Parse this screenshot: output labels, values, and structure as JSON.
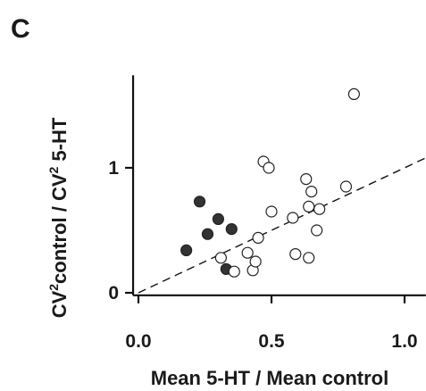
{
  "panel_label": "C",
  "chart_data": {
    "type": "scatter",
    "title": "",
    "xlabel": "Mean 5-HT / Mean control",
    "ylabel_parts": {
      "p1": "CV",
      "sup1": "2",
      "p2": "control / CV",
      "sup2": "2",
      "p3": " 5-HT"
    },
    "xlim": [
      -0.02,
      1.08
    ],
    "ylim": [
      -0.02,
      1.74
    ],
    "xticks": [
      0.0,
      0.5,
      1.0
    ],
    "xtick_labels": [
      "0.0",
      "0.5",
      "1.0"
    ],
    "yticks": [
      0,
      1
    ],
    "ytick_labels": [
      "0",
      "1"
    ],
    "grid": false,
    "reference_line": {
      "style": "dashed",
      "x": [
        0,
        1.08
      ],
      "y": [
        0,
        1.08
      ]
    },
    "series": [
      {
        "marker": "filled-circle",
        "color": "#333333",
        "points": [
          {
            "x": 0.18,
            "y": 0.34
          },
          {
            "x": 0.23,
            "y": 0.73
          },
          {
            "x": 0.26,
            "y": 0.47
          },
          {
            "x": 0.3,
            "y": 0.59
          },
          {
            "x": 0.33,
            "y": 0.19
          },
          {
            "x": 0.35,
            "y": 0.51
          }
        ]
      },
      {
        "marker": "open-circle",
        "color": "#ffffff",
        "points": [
          {
            "x": 0.31,
            "y": 0.28
          },
          {
            "x": 0.36,
            "y": 0.17
          },
          {
            "x": 0.41,
            "y": 0.32
          },
          {
            "x": 0.43,
            "y": 0.18
          },
          {
            "x": 0.44,
            "y": 0.25
          },
          {
            "x": 0.45,
            "y": 0.44
          },
          {
            "x": 0.47,
            "y": 1.05
          },
          {
            "x": 0.49,
            "y": 1.0
          },
          {
            "x": 0.5,
            "y": 0.65
          },
          {
            "x": 0.58,
            "y": 0.6
          },
          {
            "x": 0.59,
            "y": 0.31
          },
          {
            "x": 0.63,
            "y": 0.91
          },
          {
            "x": 0.64,
            "y": 0.69
          },
          {
            "x": 0.65,
            "y": 0.81
          },
          {
            "x": 0.64,
            "y": 0.28
          },
          {
            "x": 0.67,
            "y": 0.5
          },
          {
            "x": 0.68,
            "y": 0.67
          },
          {
            "x": 0.78,
            "y": 0.85
          },
          {
            "x": 0.81,
            "y": 1.59
          }
        ]
      }
    ]
  }
}
